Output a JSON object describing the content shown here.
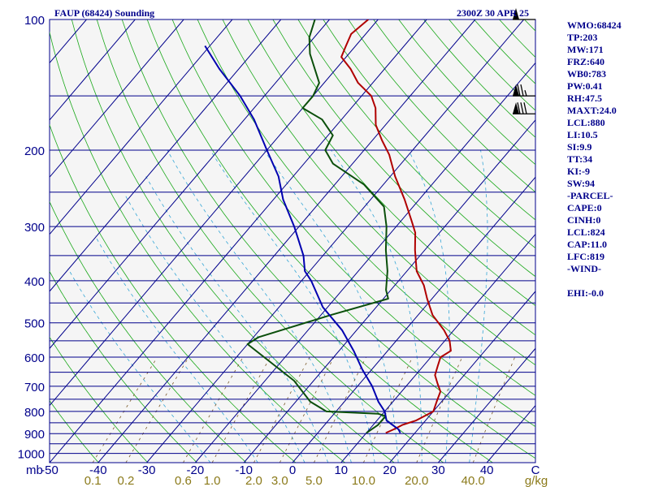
{
  "header": {
    "title": "FAUP (68424) Sounding",
    "timestamp": "2300Z 30 APR 25"
  },
  "indices": [
    "WMO:68424",
    "TP:203",
    "MW:171",
    "FRZ:640",
    "WB0:783",
    "PW:0.41",
    "RH:47.5",
    "MAXT:24.0",
    "LCL:880",
    "LI:10.5",
    "SI:9.9",
    "TT:34",
    "KI:-9",
    "SW:94",
    "-PARCEL-",
    "CAPE:0",
    "CINH:0",
    "LCL:824",
    "CAP:11.0",
    "LFC:819",
    "-WIND-",
    "",
    "EHI:-0.0"
  ],
  "colors": {
    "background": "#f5f5f5",
    "isobar": "#00008b",
    "isotherm": "#00008b",
    "dry_adiabat": "#1aa81a",
    "moist_adiabat": "#35a6d6",
    "mixing_ratio": "#7a5a2a",
    "temperature": "#b00000",
    "dewpoint": "#0b4f0b",
    "parcel": "#0000b0",
    "axis_text": "#00008b",
    "mixing_text": "#8b7a1a",
    "wind_barb": "#000000"
  },
  "chart_data": {
    "type": "skew-t",
    "title": "FAUP (68424) Sounding",
    "pressure_unit": "mb",
    "mixing_ratio_unit": "g/kg",
    "pressure_levels": [
      100,
      200,
      300,
      400,
      500,
      600,
      700,
      800,
      900,
      1000
    ],
    "pressure_labels": [
      "100",
      "200",
      "300",
      "400",
      "500",
      "600",
      "700",
      "800",
      "900",
      "1000"
    ],
    "temperature_ticks": [
      -50,
      -40,
      -30,
      -20,
      -10,
      0,
      10,
      20,
      30,
      40,
      50
    ],
    "temperature_tick_labels": [
      "-50",
      "-40",
      "-30",
      "-20",
      "-10",
      "0",
      "10",
      "20",
      "30",
      "40",
      "C"
    ],
    "mixing_ratio_labels": [
      "0.1",
      "0.2",
      "0.6",
      "1.0",
      "2.0",
      "3.0",
      "5.0",
      "10.0",
      "20.0",
      "40.0"
    ],
    "mixing_ratio_values": [
      0.1,
      0.2,
      0.6,
      1.0,
      2.0,
      3.0,
      5.0,
      10.0,
      20.0,
      40.0
    ],
    "ylim": [
      1050,
      100
    ],
    "xlim_at_1050": [
      -50,
      50
    ],
    "series": [
      {
        "key": "temperature",
        "name": "Temperature",
        "points": [
          [
            897,
            14
          ],
          [
            880,
            15
          ],
          [
            860,
            16
          ],
          [
            840,
            18
          ],
          [
            800,
            20
          ],
          [
            760,
            19
          ],
          [
            720,
            18
          ],
          [
            690,
            16
          ],
          [
            660,
            14
          ],
          [
            630,
            13
          ],
          [
            600,
            12
          ],
          [
            580,
            13
          ],
          [
            550,
            11
          ],
          [
            520,
            8
          ],
          [
            480,
            3
          ],
          [
            440,
            -1
          ],
          [
            410,
            -4
          ],
          [
            380,
            -8
          ],
          [
            340,
            -12
          ],
          [
            310,
            -15
          ],
          [
            290,
            -18
          ],
          [
            260,
            -23
          ],
          [
            230,
            -29
          ],
          [
            205,
            -34
          ],
          [
            190,
            -38
          ],
          [
            175,
            -42
          ],
          [
            160,
            -45
          ],
          [
            150,
            -48
          ],
          [
            140,
            -53
          ],
          [
            130,
            -57
          ],
          [
            122,
            -61
          ],
          [
            115,
            -62
          ],
          [
            108,
            -63
          ],
          [
            100,
            -62
          ]
        ]
      },
      {
        "key": "dewpoint",
        "name": "Dewpoint",
        "points": [
          [
            897,
            10
          ],
          [
            860,
            11
          ],
          [
            840,
            11
          ],
          [
            820,
            11
          ],
          [
            810,
            9
          ],
          [
            800,
            -2
          ],
          [
            760,
            -7
          ],
          [
            680,
            -14
          ],
          [
            560,
            -30
          ],
          [
            540,
            -29
          ],
          [
            480,
            -18
          ],
          [
            440,
            -9
          ],
          [
            420,
            -11
          ],
          [
            380,
            -14
          ],
          [
            340,
            -18
          ],
          [
            300,
            -22
          ],
          [
            270,
            -26
          ],
          [
            240,
            -34
          ],
          [
            215,
            -44
          ],
          [
            200,
            -48
          ],
          [
            185,
            -49
          ],
          [
            170,
            -54
          ],
          [
            160,
            -60
          ],
          [
            150,
            -60
          ],
          [
            140,
            -61
          ],
          [
            120,
            -68
          ],
          [
            110,
            -71
          ],
          [
            100,
            -73
          ]
        ]
      },
      {
        "key": "parcel",
        "name": "Parcel",
        "points": [
          [
            897,
            17
          ],
          [
            880,
            16
          ],
          [
            860,
            14
          ],
          [
            840,
            12
          ],
          [
            820,
            11
          ],
          [
            800,
            10
          ],
          [
            760,
            7
          ],
          [
            700,
            3
          ],
          [
            640,
            -2
          ],
          [
            580,
            -7
          ],
          [
            520,
            -13
          ],
          [
            460,
            -21
          ],
          [
            400,
            -28
          ],
          [
            380,
            -31
          ],
          [
            350,
            -34
          ],
          [
            300,
            -41
          ],
          [
            260,
            -48
          ],
          [
            230,
            -53
          ],
          [
            200,
            -60
          ],
          [
            170,
            -68
          ],
          [
            150,
            -75
          ],
          [
            130,
            -84
          ],
          [
            115,
            -91
          ]
        ]
      }
    ],
    "wind_barbs": [
      {
        "p": 100,
        "dir": 300,
        "kt": 50
      },
      {
        "p": 150,
        "dir": 270,
        "kt": 75
      },
      {
        "p": 165,
        "dir": 270,
        "kt": 80
      }
    ]
  }
}
